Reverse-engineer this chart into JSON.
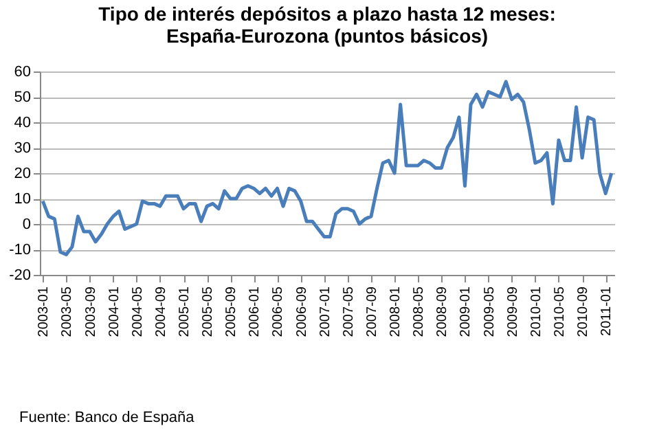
{
  "chart_data": {
    "type": "line",
    "title": "Tipo de interés depósitos a plazo hasta 12 meses:\nEspaña-Eurozona (puntos básicos)",
    "categories": [
      "2003-01",
      null,
      null,
      null,
      "2003-05",
      null,
      null,
      null,
      "2003-09",
      null,
      null,
      null,
      "2004-01",
      null,
      null,
      null,
      "2004-05",
      null,
      null,
      null,
      "2004-09",
      null,
      null,
      null,
      "2005-01",
      null,
      null,
      null,
      "2005-05",
      null,
      null,
      null,
      "2005-09",
      null,
      null,
      null,
      "2006-01",
      null,
      null,
      null,
      "2006-05",
      null,
      null,
      null,
      "2006-09",
      null,
      null,
      null,
      "2007-01",
      null,
      null,
      null,
      "2007-05",
      null,
      null,
      null,
      "2007-09",
      null,
      null,
      null,
      "2008-01",
      null,
      null,
      null,
      "2008-05",
      null,
      null,
      null,
      "2008-09",
      null,
      null,
      null,
      "2009-01",
      null,
      null,
      null,
      "2009-05",
      null,
      null,
      null,
      "2009-09",
      null,
      null,
      null,
      "2010-01",
      null,
      null,
      null,
      "2010-05",
      null,
      null,
      null,
      "2010-09",
      null,
      null,
      null,
      "2011-01",
      null
    ],
    "series": [
      {
        "color": "#4a7ebb",
        "values": [
          9,
          3,
          2,
          -11,
          -12,
          -9,
          3,
          -3,
          -3,
          -7,
          -4,
          0,
          3,
          5,
          -2,
          -1,
          0,
          9,
          8,
          8,
          7,
          11,
          11,
          11,
          6,
          8,
          8,
          1,
          7,
          8,
          6,
          13,
          10,
          10,
          14,
          15,
          14,
          12,
          14,
          11,
          14,
          7,
          14,
          13,
          9,
          1,
          1,
          -2,
          -5,
          -5,
          4,
          6,
          6,
          5,
          0,
          2,
          3,
          14,
          24,
          25,
          20,
          47,
          23,
          23,
          23,
          25,
          24,
          22,
          22,
          30,
          34,
          42,
          15,
          47,
          51,
          46,
          52,
          51,
          50,
          56,
          49,
          51,
          48,
          37,
          24,
          25,
          28,
          8,
          33,
          25,
          25,
          46,
          26,
          42,
          41,
          20,
          12,
          20
        ]
      }
    ],
    "ylim": [
      -20,
      60
    ],
    "yticks": [
      -20,
      -10,
      0,
      10,
      20,
      30,
      40,
      50,
      60
    ],
    "grid": "y",
    "legend": false,
    "marker": "none",
    "line_style": "solid",
    "annotations": [
      "Fuente: Banco de España"
    ]
  }
}
